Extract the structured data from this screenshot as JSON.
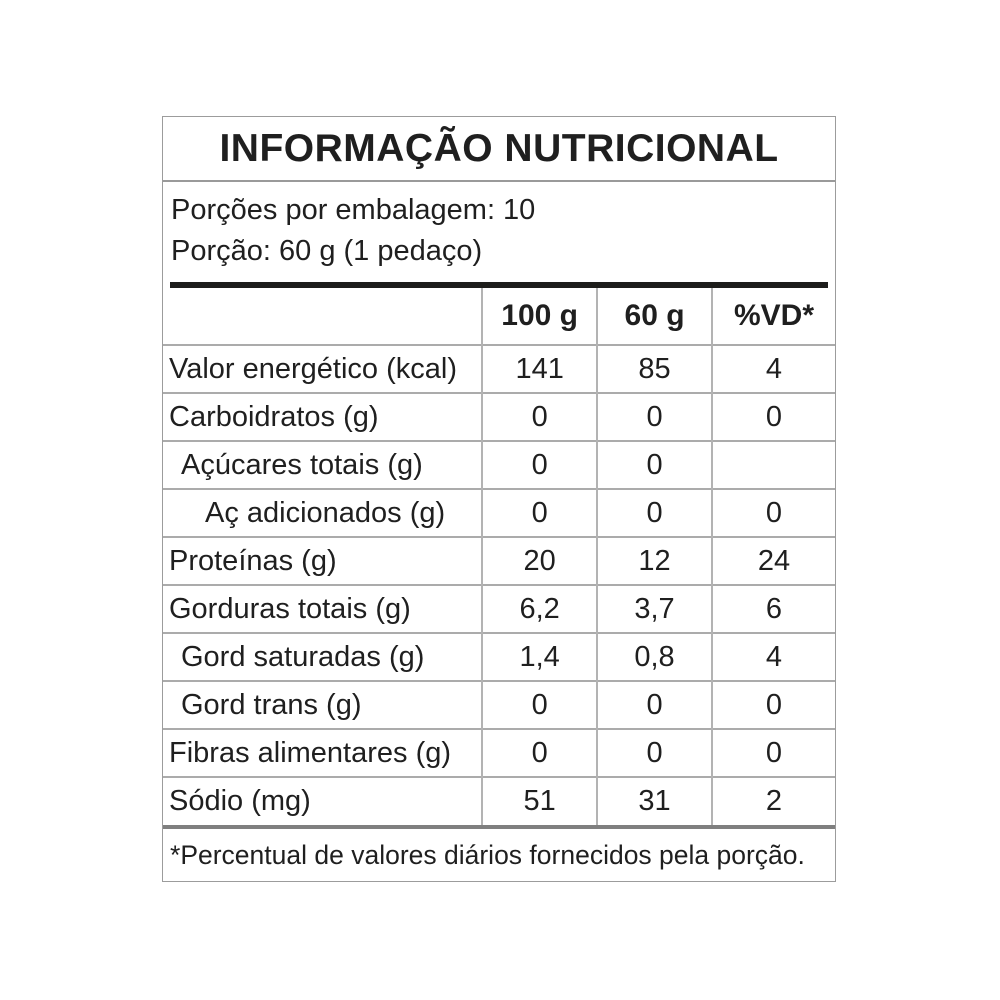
{
  "label": {
    "title": "INFORMAÇÃO NUTRICIONAL",
    "servings_per_package": "Porções por embalagem: 10",
    "serving_size": "Porção: 60 g (1 pedaço)",
    "columns": {
      "per100": "100 g",
      "per60": "60 g",
      "vd": "%VD*"
    },
    "rows": [
      {
        "name": "Valor energético (kcal)",
        "per100": "141",
        "per60": "85",
        "vd": "4"
      },
      {
        "name": "Carboidratos (g)",
        "per100": "0",
        "per60": "0",
        "vd": "0"
      },
      {
        "name": "Açúcares totais (g)",
        "per100": "0",
        "per60": "0",
        "vd": ""
      },
      {
        "name": "Aç adicionados (g)",
        "per100": "0",
        "per60": "0",
        "vd": "0"
      },
      {
        "name": "Proteínas (g)",
        "per100": "20",
        "per60": "12",
        "vd": "24"
      },
      {
        "name": "Gorduras totais (g)",
        "per100": "6,2",
        "per60": "3,7",
        "vd": "6"
      },
      {
        "name": "Gord saturadas (g)",
        "per100": "1,4",
        "per60": "0,8",
        "vd": "4"
      },
      {
        "name": "Gord trans (g)",
        "per100": "0",
        "per60": "0",
        "vd": "0"
      },
      {
        "name": "Fibras alimentares (g)",
        "per100": "0",
        "per60": "0",
        "vd": "0"
      },
      {
        "name": "Sódio (mg)",
        "per100": "51",
        "per60": "31",
        "vd": "2"
      }
    ],
    "footnote": "*Percentual de valores diários fornecidos pela porção.",
    "colors": {
      "text": "#1f1f1f",
      "thick_rule": "#1d1d1b",
      "gray_rule": "#7f7f7f",
      "thin_rule": "#ababab",
      "outer_border": "#9c9c9c",
      "background": "#ffffff"
    }
  }
}
